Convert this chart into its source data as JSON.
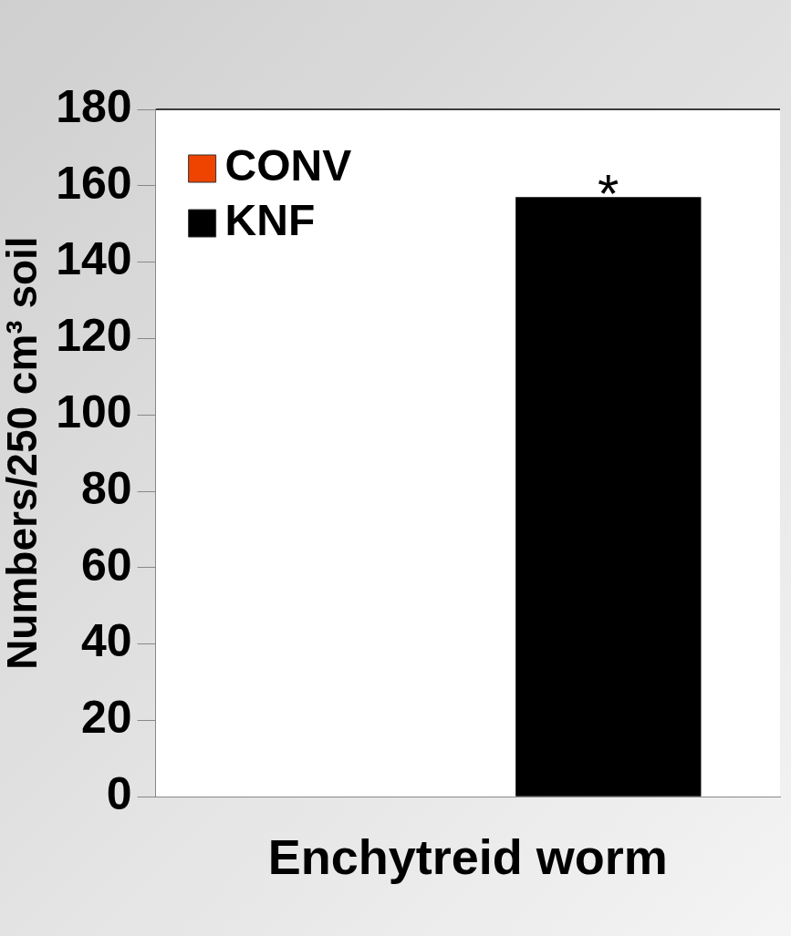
{
  "chart_data": {
    "type": "bar",
    "ylabel": "Numbers/250 cm³ soil",
    "categories": [
      "Enchytreid worm"
    ],
    "series": [
      {
        "name": "CONV",
        "color": "#ee4400",
        "values": [
          null
        ]
      },
      {
        "name": "KNF",
        "color": "#000000",
        "values": [
          157
        ]
      }
    ],
    "ylim": [
      0,
      180
    ],
    "yticks": [
      0,
      20,
      40,
      60,
      80,
      100,
      120,
      140,
      160,
      180
    ],
    "grid": false,
    "legend": "top left",
    "annotations": [
      "*"
    ]
  }
}
